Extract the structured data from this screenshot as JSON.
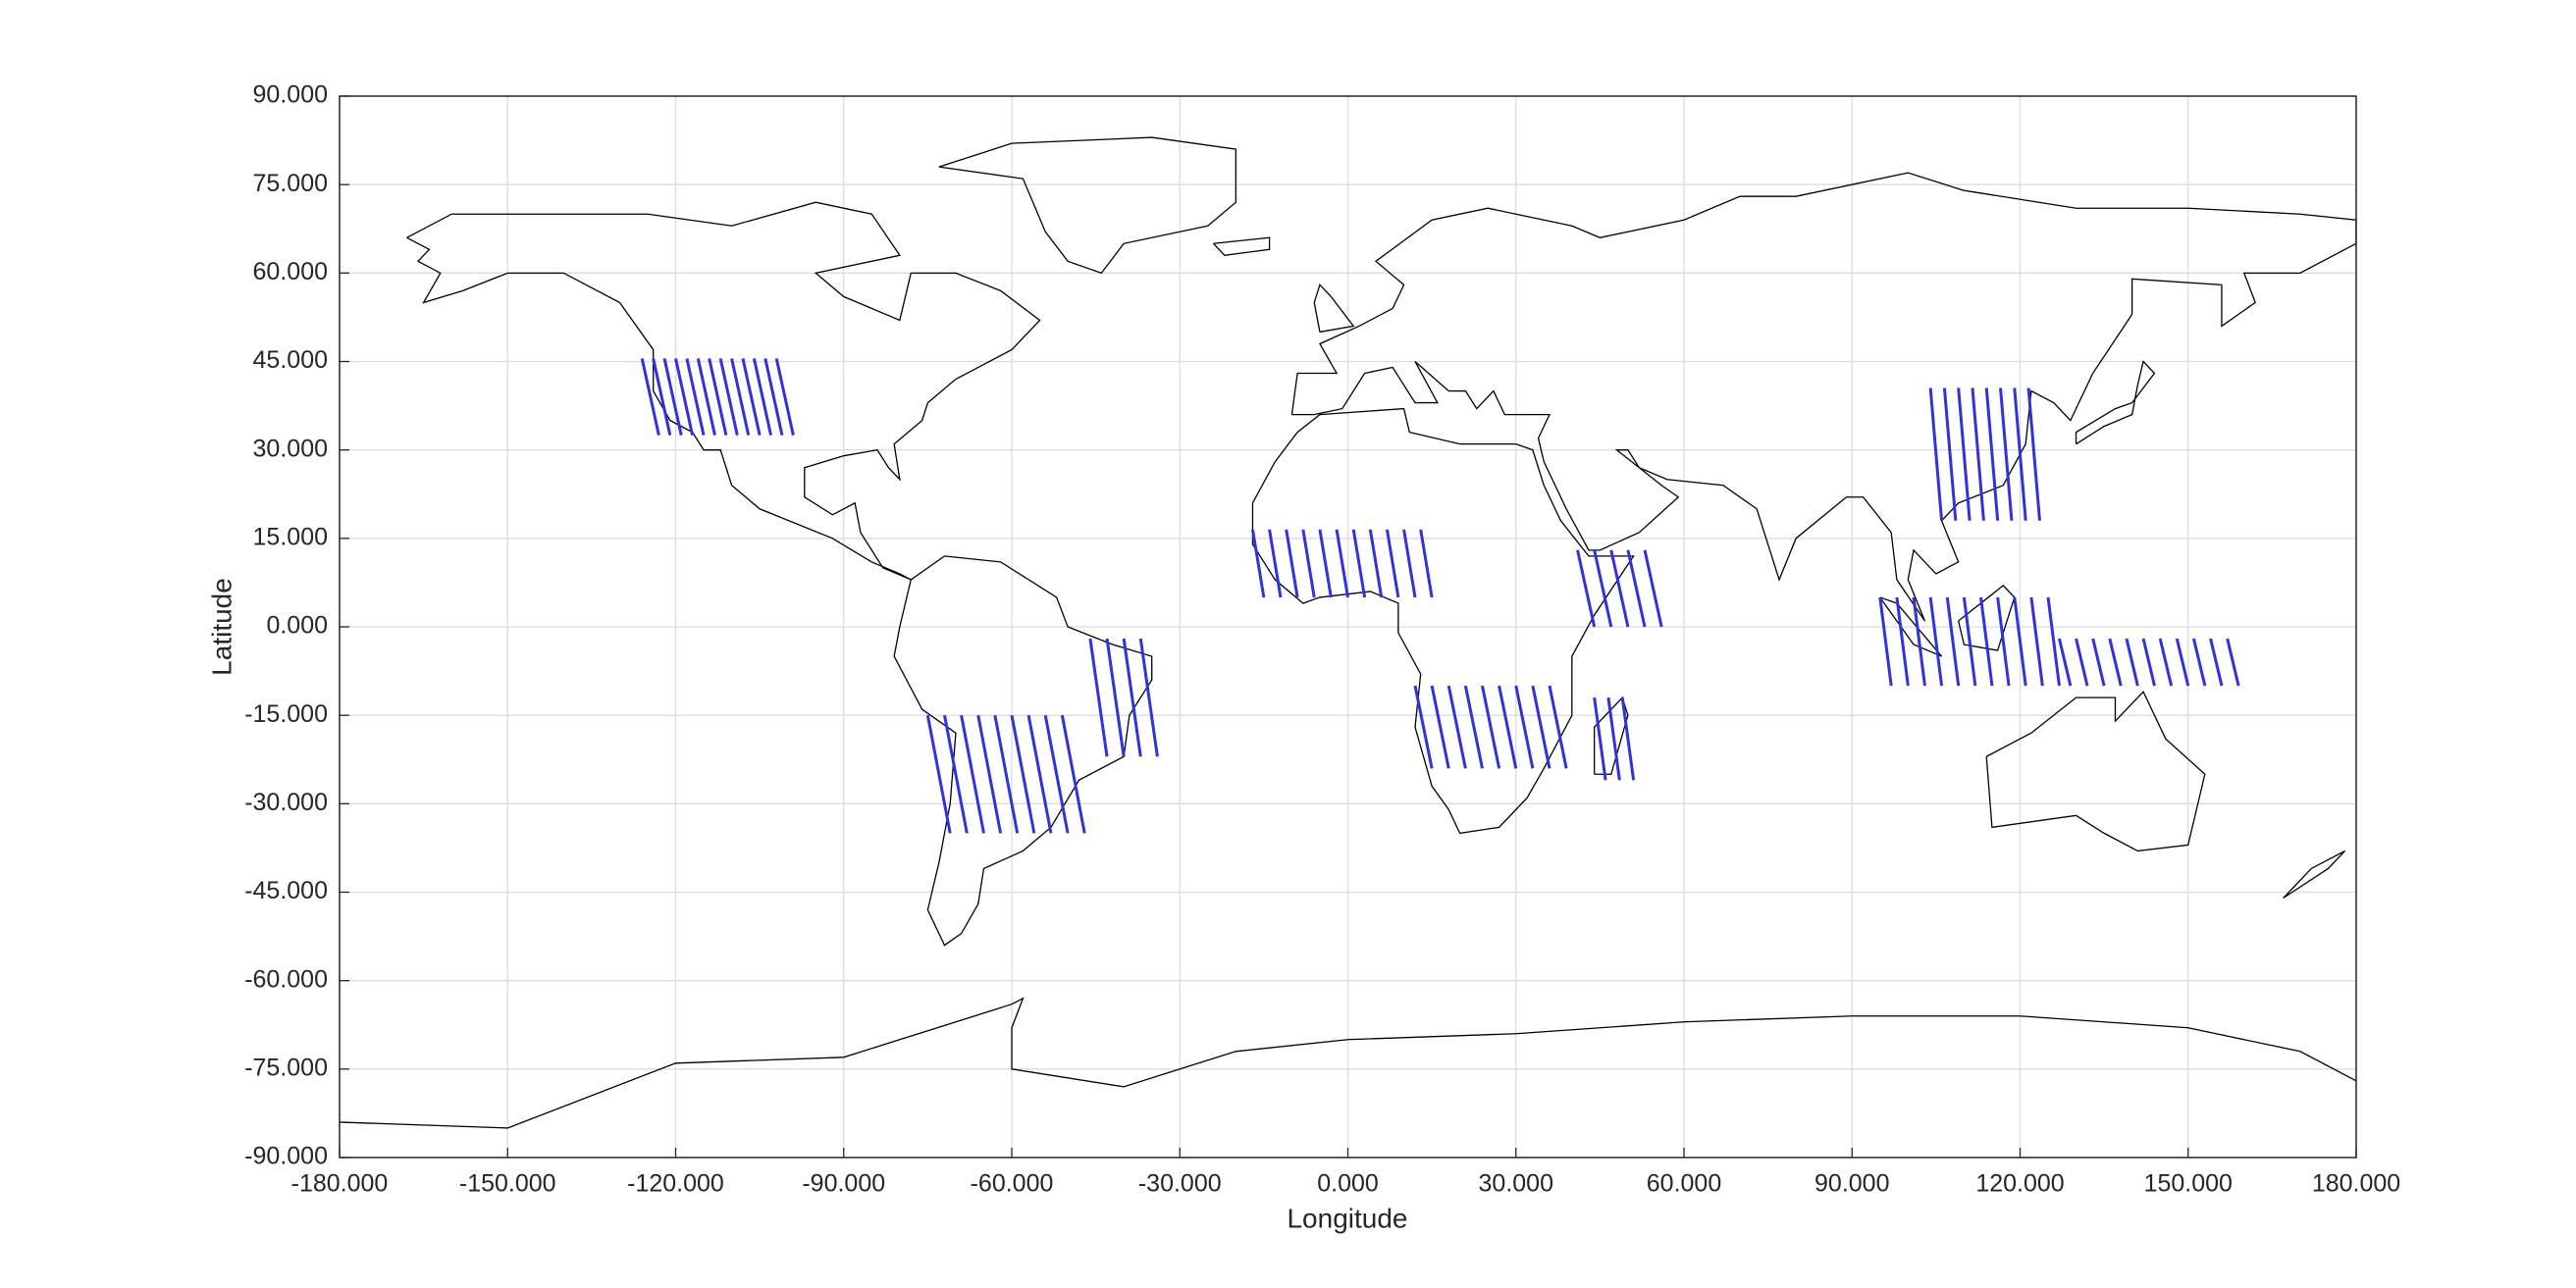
{
  "chart_data": {
    "type": "line",
    "color": "#3232dc",
    "grid": true,
    "xlabel": "Longitude",
    "ylabel": "Latitude",
    "xlim": [
      -180,
      180
    ],
    "ylim": [
      -90,
      90
    ],
    "xticks": [
      {
        "value": -180,
        "label": "-180.000"
      },
      {
        "value": -150,
        "label": "-150.000"
      },
      {
        "value": -120,
        "label": "-120.000"
      },
      {
        "value": -90,
        "label": "-90.000"
      },
      {
        "value": -60,
        "label": "-60.000"
      },
      {
        "value": -30,
        "label": "-30.000"
      },
      {
        "value": 0,
        "label": "0.000"
      },
      {
        "value": 30,
        "label": "30.000"
      },
      {
        "value": 60,
        "label": "60.000"
      },
      {
        "value": 90,
        "label": "90.000"
      },
      {
        "value": 120,
        "label": "120.000"
      },
      {
        "value": 150,
        "label": "150.000"
      },
      {
        "value": 180,
        "label": "180.000"
      }
    ],
    "yticks": [
      {
        "value": -90,
        "label": "-90.000"
      },
      {
        "value": -75,
        "label": "-75.000"
      },
      {
        "value": -60,
        "label": "-60.000"
      },
      {
        "value": -45,
        "label": "-45.000"
      },
      {
        "value": -30,
        "label": "-30.000"
      },
      {
        "value": -15,
        "label": "-15.000"
      },
      {
        "value": 0,
        "label": "0.000"
      },
      {
        "value": 15,
        "label": "15.000"
      },
      {
        "value": 30,
        "label": "30.000"
      },
      {
        "value": 45,
        "label": "45.000"
      },
      {
        "value": 60,
        "label": "60.000"
      },
      {
        "value": 75,
        "label": "75.000"
      },
      {
        "value": 90,
        "label": "90.000"
      }
    ],
    "series": [
      {
        "x": [
          -126,
          -123,
          null,
          -124,
          -121,
          null,
          -122,
          -119,
          null,
          -120,
          -117,
          null,
          -118,
          -115,
          null,
          -116,
          -113,
          null,
          -114,
          -111,
          null,
          -112,
          -109,
          null,
          -110,
          -107,
          null,
          -108,
          -105,
          null,
          -106,
          -103,
          null,
          -104,
          -101,
          null,
          -102,
          -99
        ],
        "y": [
          45.5,
          32.5,
          null,
          45.5,
          32.5,
          null,
          45.5,
          32.5,
          null,
          45.5,
          32.5,
          null,
          45.5,
          32.5,
          null,
          45.5,
          32.5,
          null,
          45.5,
          32.5,
          null,
          45.5,
          32.5,
          null,
          45.5,
          32.5,
          null,
          45.5,
          32.5,
          null,
          45.5,
          32.5,
          null,
          45.5,
          32.5,
          null,
          45.5,
          32.5
        ]
      },
      {
        "x": [
          -75,
          -71,
          null,
          -72,
          -68,
          null,
          -69,
          -65,
          null,
          -66,
          -62,
          null,
          -63,
          -59,
          null,
          -60,
          -56,
          null,
          -57,
          -53,
          null,
          -54,
          -50,
          null,
          -51,
          -47
        ],
        "y": [
          -15,
          -35,
          null,
          -15,
          -35,
          null,
          -15,
          -35,
          null,
          -15,
          -35,
          null,
          -15,
          -35,
          null,
          -15,
          -35,
          null,
          -15,
          -35,
          null,
          -15,
          -35,
          null,
          -15,
          -35
        ]
      },
      {
        "x": [
          -46,
          -43,
          null,
          -43,
          -40,
          null,
          -40,
          -37,
          null,
          -37,
          -34
        ],
        "y": [
          -2,
          -22,
          null,
          -2,
          -22,
          null,
          -2,
          -22,
          null,
          -2,
          -22
        ]
      },
      {
        "x": [
          -17,
          -15,
          null,
          -14,
          -12,
          null,
          -11,
          -9,
          null,
          -8,
          -6,
          null,
          -5,
          -3,
          null,
          -2,
          0,
          null,
          1,
          3,
          null,
          4,
          6,
          null,
          7,
          9,
          null,
          10,
          12,
          null,
          13,
          15
        ],
        "y": [
          16.5,
          5,
          null,
          16.5,
          5,
          null,
          16.5,
          5,
          null,
          16.5,
          5,
          null,
          16.5,
          5,
          null,
          16.5,
          5,
          null,
          16.5,
          5,
          null,
          16.5,
          5,
          null,
          16.5,
          5,
          null,
          16.5,
          5,
          null,
          16.5,
          5
        ]
      },
      {
        "x": [
          41,
          44,
          null,
          44,
          47,
          null,
          47,
          50,
          null,
          50,
          53,
          null,
          53,
          56
        ],
        "y": [
          13,
          0,
          null,
          13,
          0,
          null,
          13,
          0,
          null,
          13,
          0,
          null,
          13,
          0
        ]
      },
      {
        "x": [
          12,
          15,
          null,
          15,
          18,
          null,
          18,
          21,
          null,
          21,
          24,
          null,
          24,
          27,
          null,
          27,
          30,
          null,
          30,
          33,
          null,
          33,
          36,
          null,
          36,
          39
        ],
        "y": [
          -10,
          -24,
          null,
          -10,
          -24,
          null,
          -10,
          -24,
          null,
          -10,
          -24,
          null,
          -10,
          -24,
          null,
          -10,
          -24,
          null,
          -10,
          -24,
          null,
          -10,
          -24,
          null,
          -10,
          -24
        ]
      },
      {
        "x": [
          44,
          46,
          null,
          46.5,
          48.5,
          null,
          49,
          51
        ],
        "y": [
          -12,
          -26,
          null,
          -12,
          -26,
          null,
          -12,
          -26
        ]
      },
      {
        "x": [
          104,
          106,
          null,
          106.5,
          108.5,
          null,
          109,
          111,
          null,
          111.5,
          113.5,
          null,
          114,
          116,
          null,
          116.5,
          118.5,
          null,
          119,
          121,
          null,
          121.5,
          123.5
        ],
        "y": [
          40.5,
          18,
          null,
          40.5,
          18,
          null,
          40.5,
          18,
          null,
          40.5,
          18,
          null,
          40.5,
          18,
          null,
          40.5,
          18,
          null,
          40.5,
          18,
          null,
          40.5,
          18
        ]
      },
      {
        "x": [
          95,
          97,
          null,
          98,
          100,
          null,
          101,
          103,
          null,
          104,
          106,
          null,
          107,
          109,
          null,
          110,
          112,
          null,
          113,
          115,
          null,
          116,
          118,
          null,
          119,
          121,
          null,
          122,
          124,
          null,
          125,
          127
        ],
        "y": [
          5,
          -10,
          null,
          5,
          -10,
          null,
          5,
          -10,
          null,
          5,
          -10,
          null,
          5,
          -10,
          null,
          5,
          -10,
          null,
          5,
          -10,
          null,
          5,
          -10,
          null,
          5,
          -10,
          null,
          5,
          -10,
          null,
          5,
          -10
        ]
      },
      {
        "x": [
          127,
          129,
          null,
          130,
          132,
          null,
          133,
          135,
          null,
          136,
          138,
          null,
          139,
          141,
          null,
          142,
          144,
          null,
          145,
          147,
          null,
          148,
          150,
          null,
          151,
          153,
          null,
          154,
          156,
          null,
          157,
          159
        ],
        "y": [
          -2,
          -10,
          null,
          -2,
          -10,
          null,
          -2,
          -10,
          null,
          -2,
          -10,
          null,
          -2,
          -10,
          null,
          -2,
          -10,
          null,
          -2,
          -10,
          null,
          -2,
          -10,
          null,
          -2,
          -10,
          null,
          -2,
          -10,
          null,
          -2,
          -10
        ]
      }
    ]
  }
}
